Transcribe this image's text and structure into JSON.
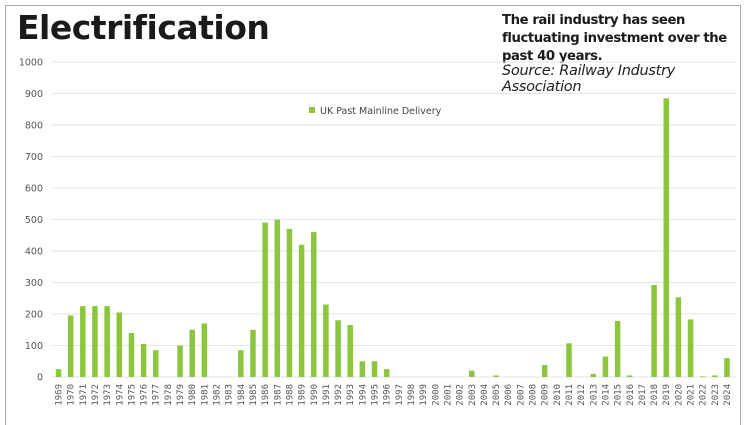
{
  "header": {
    "title": "Electrification",
    "subtitle": "The rail industry has seen fluctuating investment over the past 40 years.",
    "source": "Source: Railway Industry Association"
  },
  "colors": {
    "bar": "#8cc63f",
    "grid": "#e6e6e6",
    "text": "#1a1a1a"
  },
  "chart_data": {
    "type": "bar",
    "title": "Electrification",
    "xlabel": "",
    "ylabel": "",
    "ylim": [
      0,
      1000
    ],
    "yticks": [
      0,
      100,
      200,
      300,
      400,
      500,
      600,
      700,
      800,
      900,
      1000
    ],
    "grid": true,
    "legend": {
      "position": "top-center",
      "entries": [
        "UK Past Mainline Delivery"
      ]
    },
    "categories": [
      "1969",
      "1970",
      "1971",
      "1972",
      "1973",
      "1974",
      "1975",
      "1976",
      "1977",
      "1978",
      "1979",
      "1980",
      "1981",
      "1982",
      "1983",
      "1984",
      "1985",
      "1986",
      "1987",
      "1988",
      "1989",
      "1990",
      "1991",
      "1992",
      "1993",
      "1994",
      "1995",
      "1996",
      "1997",
      "1998",
      "1999",
      "2000",
      "2001",
      "2002",
      "2003",
      "2004",
      "2005",
      "2006",
      "2007",
      "2008",
      "2009",
      "2010",
      "2011",
      "2012",
      "2013",
      "2014",
      "2015",
      "2016",
      "2017",
      "2018",
      "2019",
      "2020",
      "2021",
      "2022",
      "2023",
      "2024"
    ],
    "series": [
      {
        "name": "UK Past Mainline Delivery",
        "values": [
          25,
          195,
          225,
          225,
          225,
          205,
          140,
          105,
          85,
          0,
          100,
          150,
          170,
          0,
          0,
          85,
          150,
          490,
          500,
          470,
          420,
          460,
          230,
          180,
          165,
          50,
          50,
          25,
          0,
          0,
          0,
          0,
          0,
          0,
          20,
          0,
          5,
          0,
          0,
          0,
          38,
          0,
          107,
          0,
          10,
          65,
          178,
          5,
          0,
          292,
          885,
          253,
          183,
          2,
          5,
          60
        ]
      }
    ]
  }
}
